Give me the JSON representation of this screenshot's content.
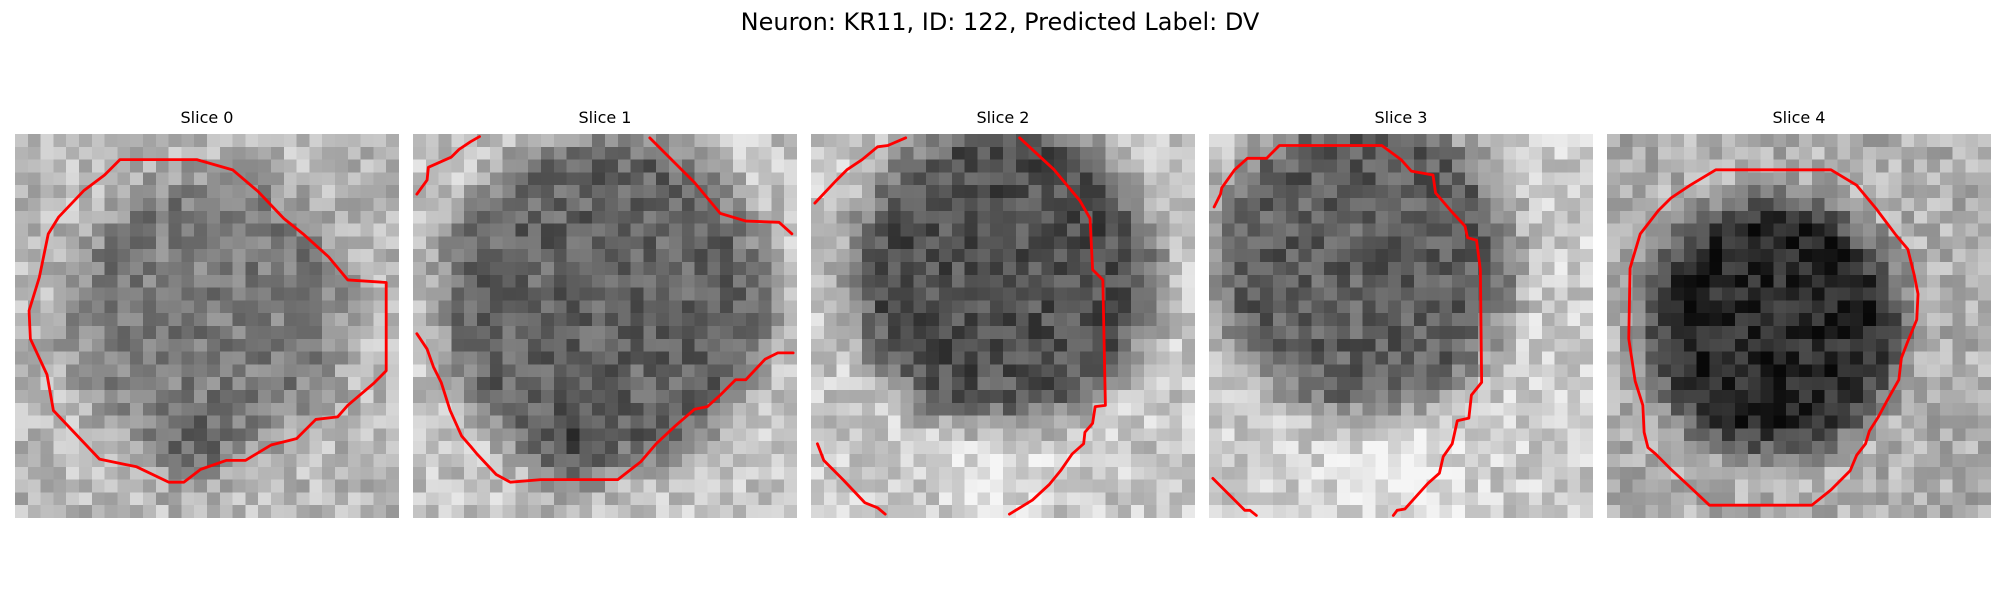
{
  "figure": {
    "title": "Neuron: KR11, ID: 122, Predicted Label: DV"
  },
  "panels": [
    {
      "title": "Slice 0",
      "contour_color": "#ff0000",
      "contour_description": "closed octagonal outline enclosing a mid-gray cell body"
    },
    {
      "title": "Slice 1",
      "contour_color": "#ff0000",
      "contour_description": "partial outline; edges exit the image frame"
    },
    {
      "title": "Slice 2",
      "contour_color": "#ff0000",
      "contour_description": "partial outline around darker cell body, open at top-left and bottom"
    },
    {
      "title": "Slice 3",
      "contour_color": "#ff0000",
      "contour_description": "partial outline along top and right edges"
    },
    {
      "title": "Slice 4",
      "contour_color": "#ff0000",
      "contour_description": "closed outline enclosing a dark cell body"
    }
  ]
}
